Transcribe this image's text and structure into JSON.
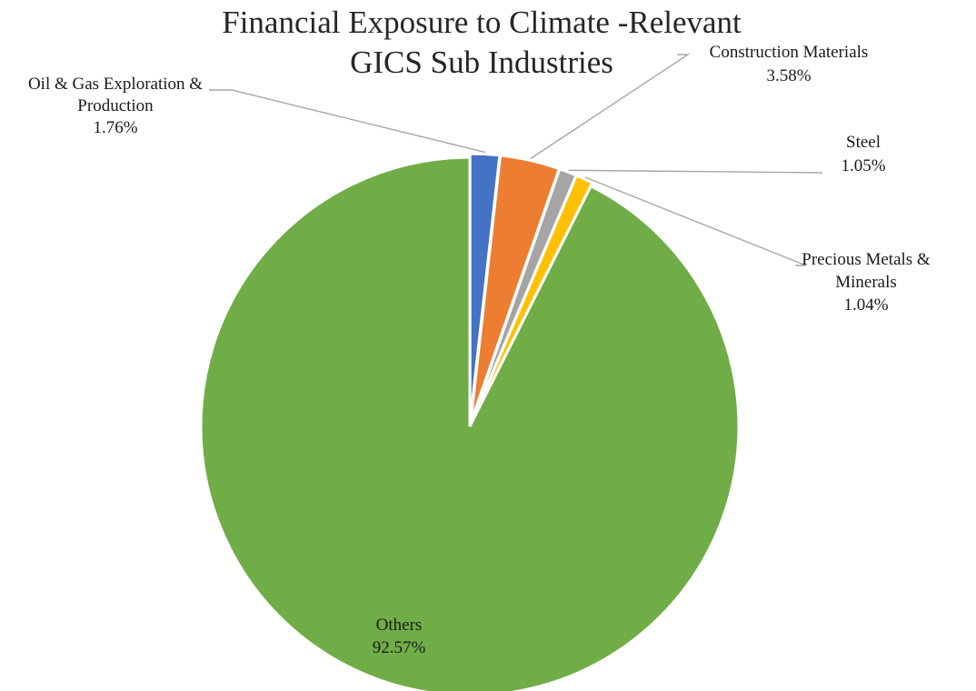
{
  "chart_data": {
    "type": "pie",
    "title_lines": [
      "Financial Exposure to Climate -Relevant",
      "GICS Sub Industries"
    ],
    "slices": [
      {
        "name_lines": [
          "Oil & Gas Exploration &",
          "Production"
        ],
        "value": 1.76,
        "value_label": "1.76%",
        "color": "#4472c4"
      },
      {
        "name_lines": [
          "Construction Materials"
        ],
        "value": 3.58,
        "value_label": "3.58%",
        "color": "#ed7d31"
      },
      {
        "name_lines": [
          "Steel"
        ],
        "value": 1.05,
        "value_label": "1.05%",
        "color": "#a5a5a5"
      },
      {
        "name_lines": [
          "Precious Metals &",
          "Minerals"
        ],
        "value": 1.04,
        "value_label": "1.04%",
        "color": "#ffc000"
      },
      {
        "name_lines": [
          "Others"
        ],
        "value": 92.57,
        "value_label": "92.57%",
        "color": "#70ad47"
      }
    ]
  }
}
